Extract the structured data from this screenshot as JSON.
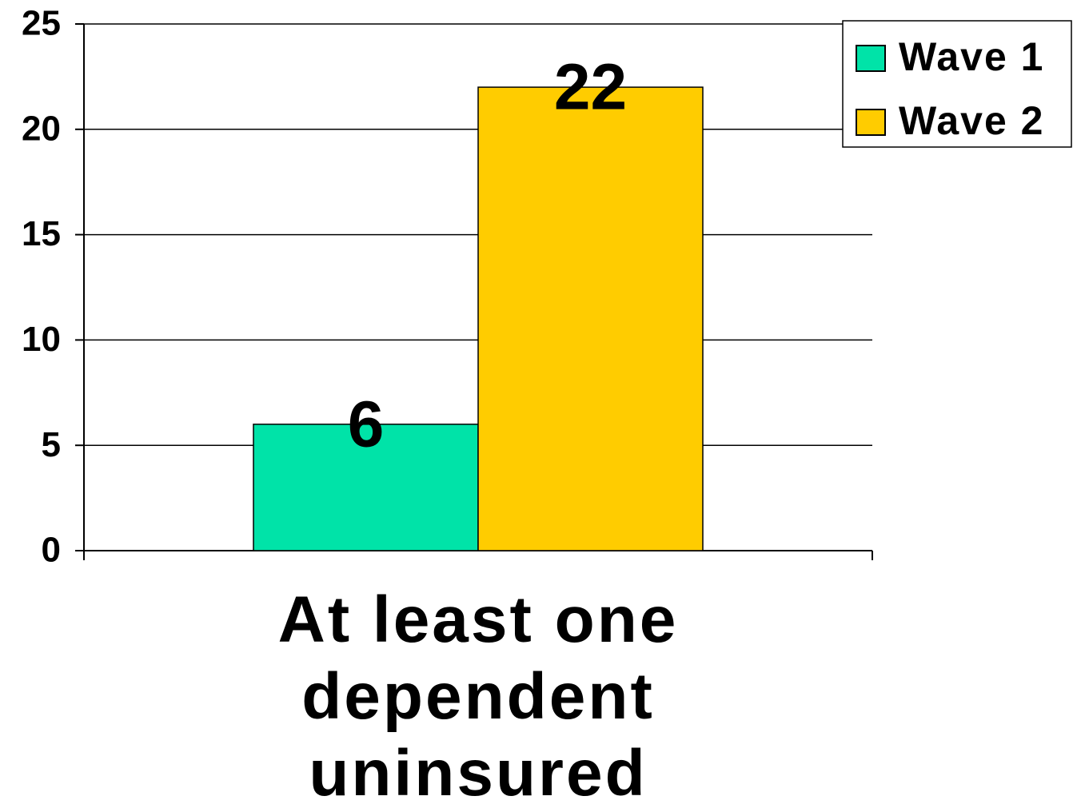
{
  "chart_data": {
    "type": "bar",
    "categories": [
      "At least one dependent uninsured"
    ],
    "series": [
      {
        "name": "Wave 1",
        "color": "#00e3a8",
        "values": [
          6
        ]
      },
      {
        "name": "Wave 2",
        "color": "#ffcc00",
        "values": [
          22
        ]
      }
    ],
    "ylim": [
      0,
      25
    ],
    "yticks": [
      0,
      5,
      10,
      15,
      20,
      25
    ],
    "grid": true,
    "legend": "top-right"
  }
}
